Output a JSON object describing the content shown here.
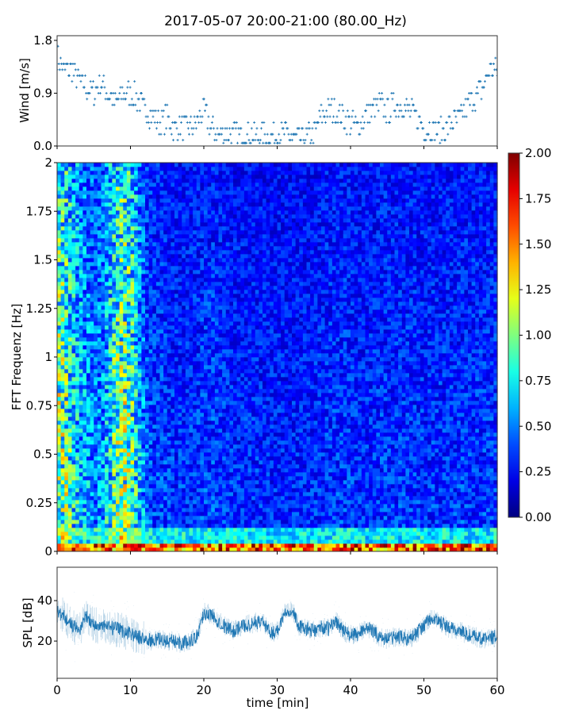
{
  "title": "2017-05-07 20:00-21:00 (80.00_Hz)",
  "chart_data": [
    {
      "type": "scatter",
      "name": "wind",
      "ylabel": "Wind [m/s]",
      "ylim": [
        0,
        1.88
      ],
      "xlim": [
        0,
        60
      ],
      "yticks": [
        "0.0",
        "0.9",
        "1.8"
      ],
      "ytick_values": [
        0,
        0.9,
        1.8
      ],
      "color": "#1f77b4",
      "marker": "+",
      "x": [
        0,
        1,
        2,
        3,
        4,
        5,
        6,
        7,
        8,
        9,
        10,
        11,
        12,
        13,
        14,
        15,
        16,
        17,
        18,
        19,
        20,
        21,
        22,
        23,
        24,
        25,
        26,
        27,
        28,
        29,
        30,
        31,
        32,
        33,
        34,
        35,
        36,
        37,
        38,
        39,
        40,
        41,
        42,
        43,
        44,
        45,
        46,
        47,
        48,
        49,
        50,
        51,
        52,
        53,
        54,
        55,
        56,
        57,
        58,
        59,
        60
      ],
      "y": [
        1.5,
        1.3,
        1.3,
        1.1,
        1.0,
        0.9,
        1.1,
        0.9,
        0.7,
        0.9,
        0.9,
        0.8,
        0.6,
        0.5,
        0.4,
        0.5,
        0.3,
        0.35,
        0.3,
        0.4,
        0.6,
        0.3,
        0.2,
        0.25,
        0.2,
        0.15,
        0.2,
        0.15,
        0.2,
        0.15,
        0.2,
        0.2,
        0.15,
        0.1,
        0.15,
        0.2,
        0.5,
        0.6,
        0.6,
        0.5,
        0.4,
        0.3,
        0.5,
        0.6,
        0.7,
        0.6,
        0.7,
        0.7,
        0.6,
        0.5,
        0.3,
        0.3,
        0.25,
        0.3,
        0.4,
        0.5,
        0.7,
        0.8,
        1.0,
        1.3,
        1.3
      ]
    },
    {
      "type": "heatmap",
      "name": "spectrogram",
      "ylabel": "FFT Frequenz [Hz]",
      "ylim": [
        0,
        2
      ],
      "xlim": [
        0,
        60
      ],
      "yticks": [
        "0",
        "0.25",
        "0.5",
        "0.75",
        "1",
        "1.25",
        "1.5",
        "1.75",
        "2"
      ],
      "ytick_values": [
        0,
        0.25,
        0.5,
        0.75,
        1,
        1.25,
        1.5,
        1.75,
        2
      ],
      "colormap": "jet",
      "clim": [
        0,
        2
      ],
      "colorbar_ticks": [
        "0.00",
        "0.25",
        "0.50",
        "0.75",
        "1.00",
        "1.25",
        "1.50",
        "1.75",
        "2.00"
      ],
      "column_level": [
        0.8,
        0.75,
        0.6,
        0.5,
        0.45,
        0.4,
        0.45,
        0.6,
        0.75,
        0.8,
        0.7,
        0.5,
        0.35,
        0.3,
        0.3,
        0.28,
        0.27,
        0.27,
        0.27,
        0.28,
        0.3,
        0.3,
        0.28,
        0.27,
        0.26,
        0.26,
        0.26,
        0.26,
        0.26,
        0.25,
        0.25,
        0.25,
        0.25,
        0.25,
        0.25,
        0.26,
        0.27,
        0.28,
        0.28,
        0.28,
        0.27,
        0.26,
        0.26,
        0.27,
        0.28,
        0.28,
        0.28,
        0.28,
        0.28,
        0.27,
        0.27,
        0.27,
        0.27,
        0.27,
        0.27,
        0.28,
        0.28,
        0.28,
        0.28,
        0.28
      ],
      "low_freq_level": 1.2
    },
    {
      "type": "line",
      "name": "spl",
      "ylabel": "SPL [dB]",
      "xlabel": "time [min]",
      "ylim": [
        1.6,
        56.5
      ],
      "xlim": [
        0,
        60
      ],
      "yticks": [
        "20",
        "40"
      ],
      "ytick_values": [
        20,
        40
      ],
      "xticks": [
        "0",
        "10",
        "20",
        "30",
        "40",
        "50",
        "60"
      ],
      "xtick_values": [
        0,
        10,
        20,
        30,
        40,
        50,
        60
      ],
      "color": "#1f77b4",
      "x": [
        0,
        1,
        2,
        3,
        4,
        5,
        6,
        7,
        8,
        9,
        10,
        11,
        12,
        13,
        14,
        15,
        16,
        17,
        18,
        19,
        20,
        21,
        22,
        23,
        24,
        25,
        26,
        27,
        28,
        29,
        30,
        31,
        32,
        33,
        34,
        35,
        36,
        37,
        38,
        39,
        40,
        41,
        42,
        43,
        44,
        45,
        46,
        47,
        48,
        49,
        50,
        51,
        52,
        53,
        54,
        55,
        56,
        57,
        58,
        59,
        60
      ],
      "y": [
        35,
        32,
        28,
        25,
        33,
        28,
        27,
        27,
        26,
        25,
        24,
        22,
        21,
        20,
        21,
        20,
        20,
        19,
        20,
        22,
        34,
        33,
        30,
        27,
        25,
        27,
        28,
        29,
        30,
        24,
        25,
        34,
        36,
        27,
        26,
        25,
        27,
        26,
        30,
        25,
        23,
        23,
        27,
        25,
        22,
        21,
        22,
        22,
        21,
        24,
        28,
        31,
        30,
        27,
        26,
        25,
        23,
        22,
        21,
        22,
        22
      ]
    }
  ]
}
